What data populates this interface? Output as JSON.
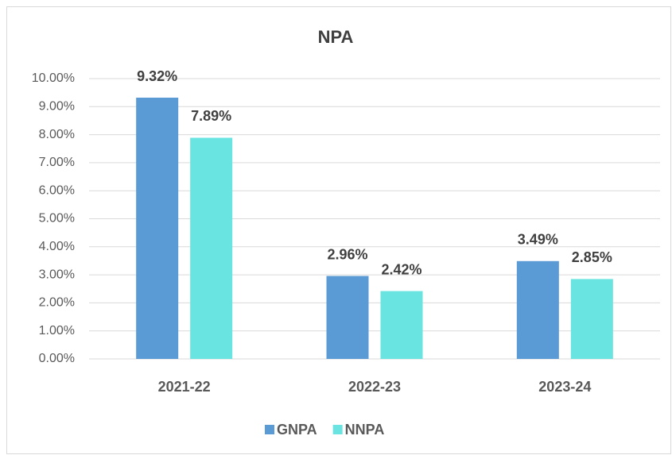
{
  "chart_data": {
    "type": "bar",
    "title": "NPA",
    "categories": [
      "2021-22",
      "2022-23",
      "2023-24"
    ],
    "series": [
      {
        "name": "GNPA",
        "color": "#5b9bd5",
        "values": [
          9.32,
          2.96,
          3.49
        ],
        "value_labels": [
          "9.32%",
          "2.96%",
          "3.49%"
        ]
      },
      {
        "name": "NNPA",
        "color": "#6ae4e0",
        "values": [
          7.89,
          2.42,
          2.85
        ],
        "value_labels": [
          "7.89%",
          "2.42%",
          "2.85%"
        ]
      }
    ],
    "ylim": [
      0,
      10
    ],
    "yticks": [
      {
        "value": 0,
        "label": "0.00%"
      },
      {
        "value": 1,
        "label": "1.00%"
      },
      {
        "value": 2,
        "label": "2.00%"
      },
      {
        "value": 3,
        "label": "3.00%"
      },
      {
        "value": 4,
        "label": "4.00%"
      },
      {
        "value": 5,
        "label": "5.00%"
      },
      {
        "value": 6,
        "label": "6.00%"
      },
      {
        "value": 7,
        "label": "7.00%"
      },
      {
        "value": 8,
        "label": "8.00%"
      },
      {
        "value": 9,
        "label": "9.00%"
      },
      {
        "value": 10,
        "label": "10.00%"
      }
    ],
    "grid": true,
    "legend": "bottom"
  }
}
